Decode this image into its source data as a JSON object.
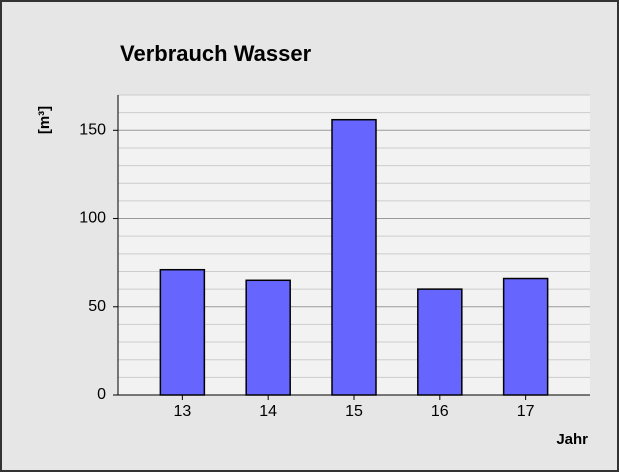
{
  "chart_data": {
    "type": "bar",
    "title": "Verbrauch Wasser",
    "y_label": "[m³]",
    "x_label": "Jahr",
    "categories": [
      "13",
      "14",
      "15",
      "16",
      "17"
    ],
    "values": [
      71,
      65,
      156,
      60,
      66
    ],
    "color": "#6666ff",
    "ylim": [
      0,
      170
    ],
    "yticks": [
      0,
      50,
      100,
      150
    ],
    "minor_gridlines": [
      10,
      20,
      30,
      40,
      60,
      70,
      80,
      90,
      110,
      120,
      130,
      140,
      160,
      170
    ],
    "grid": true
  }
}
